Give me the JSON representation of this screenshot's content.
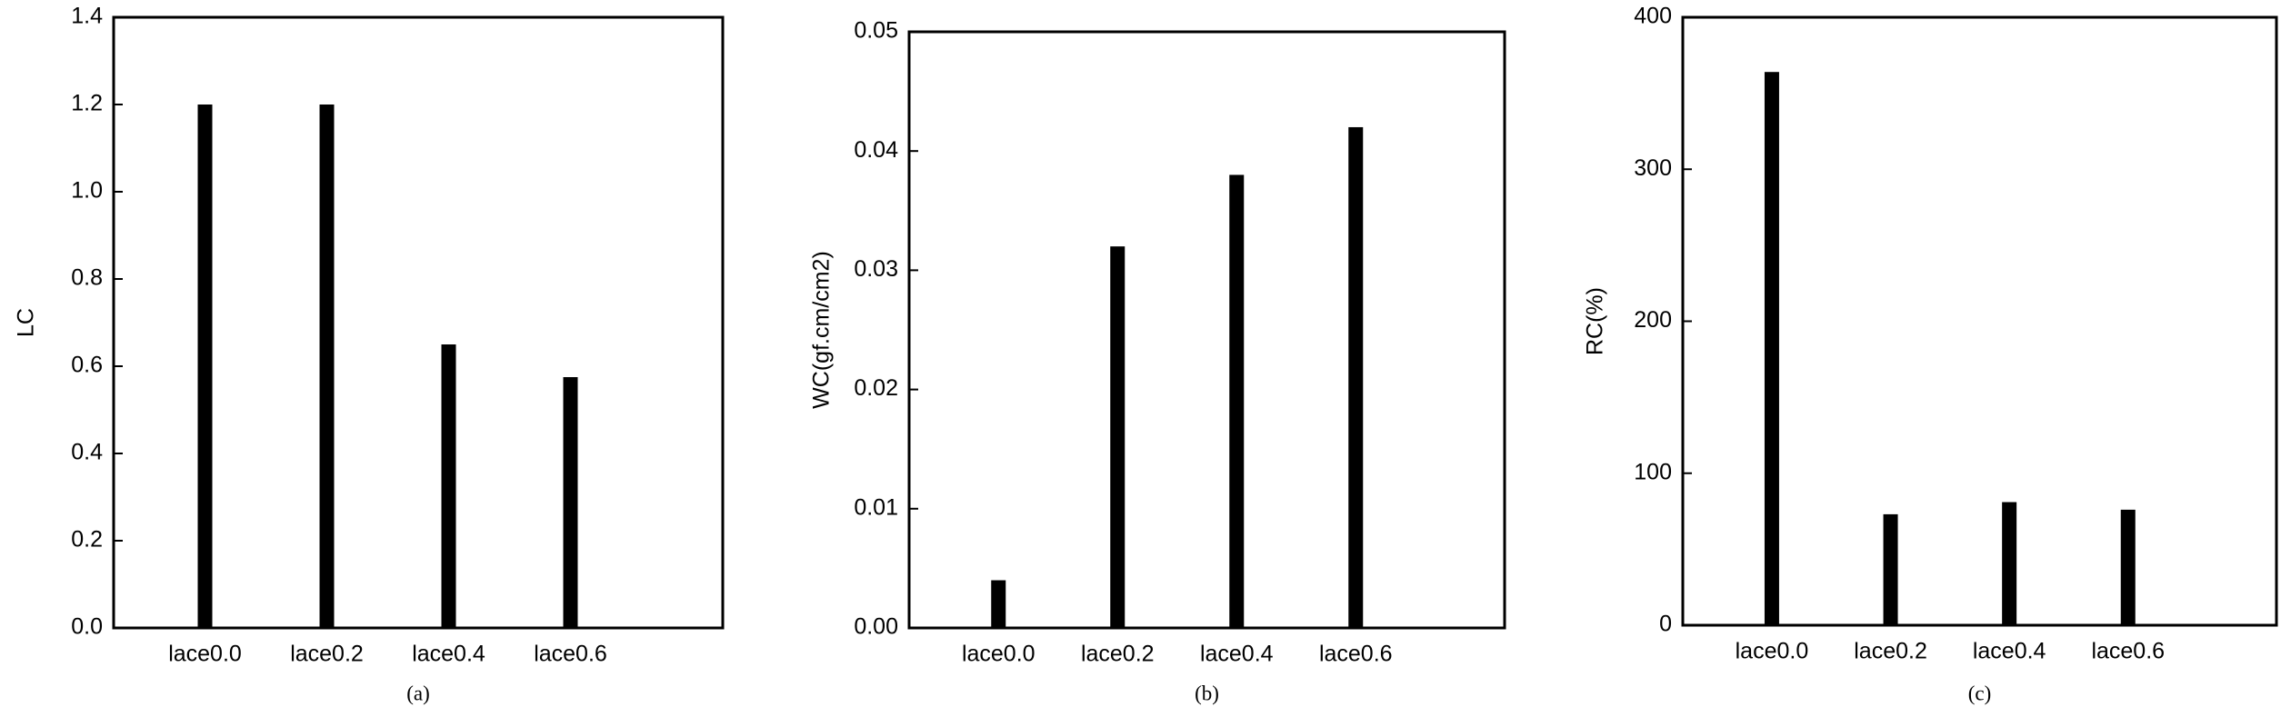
{
  "chart_data": [
    {
      "type": "bar",
      "ylabel": "LC",
      "caption": "(a)",
      "categories": [
        "lace0.0",
        "lace0.2",
        "lace0.4",
        "lace0.6"
      ],
      "values": [
        1.2,
        1.2,
        0.65,
        0.575
      ],
      "color": "#000000",
      "ylim": [
        0,
        1.4
      ],
      "yticks": [
        {
          "value": 0,
          "label": "0.0"
        },
        {
          "value": 0.2,
          "label": "0.2"
        },
        {
          "value": 0.4,
          "label": "0.4"
        },
        {
          "value": 0.6,
          "label": "0.6"
        },
        {
          "value": 0.8,
          "label": "0.8"
        },
        {
          "value": 1.0,
          "label": "1.0"
        },
        {
          "value": 1.2,
          "label": "1.2"
        },
        {
          "value": 1.4,
          "label": "1.4"
        }
      ]
    },
    {
      "type": "bar",
      "ylabel": "WC(gf.cm/cm2)",
      "caption": "(b)",
      "categories": [
        "lace0.0",
        "lace0.2",
        "lace0.4",
        "lace0.6"
      ],
      "values": [
        0.004,
        0.032,
        0.038,
        0.042
      ],
      "color": "#000000",
      "ylim": [
        0,
        0.05
      ],
      "yticks": [
        {
          "value": 0,
          "label": "0.00"
        },
        {
          "value": 0.01,
          "label": "0.01"
        },
        {
          "value": 0.02,
          "label": "0.02"
        },
        {
          "value": 0.03,
          "label": "0.03"
        },
        {
          "value": 0.04,
          "label": "0.04"
        },
        {
          "value": 0.05,
          "label": "0.05"
        }
      ]
    },
    {
      "type": "bar",
      "ylabel": "RC(%)",
      "caption": "(c)",
      "categories": [
        "lace0.0",
        "lace0.2",
        "lace0.4",
        "lace0.6"
      ],
      "values": [
        364,
        73,
        81,
        76
      ],
      "color": "#000000",
      "ylim": [
        0,
        400
      ],
      "yticks": [
        0,
        100,
        200,
        300,
        400
      ]
    }
  ]
}
